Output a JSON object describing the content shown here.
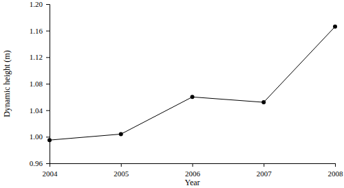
{
  "chart_data": {
    "type": "line",
    "x_label": "Year",
    "y_label": "Dynamic height (m)",
    "x": [
      2004,
      2005,
      2006,
      2007,
      2008
    ],
    "values": [
      0.995,
      1.004,
      1.06,
      1.052,
      1.166
    ],
    "color": "#000000",
    "marker": "circle",
    "line_style": "solid",
    "grid": false,
    "xlim": [
      2004,
      2008
    ],
    "xticks": [
      2004,
      2005,
      2006,
      2007,
      2008
    ],
    "ylim": [
      0.96,
      1.2
    ],
    "yticks": [
      0.96,
      {
        "value": 1.0,
        "label": "1.00"
      },
      1.04,
      1.08,
      1.12,
      1.16,
      {
        "value": 1.2,
        "label": "1.20"
      }
    ]
  }
}
